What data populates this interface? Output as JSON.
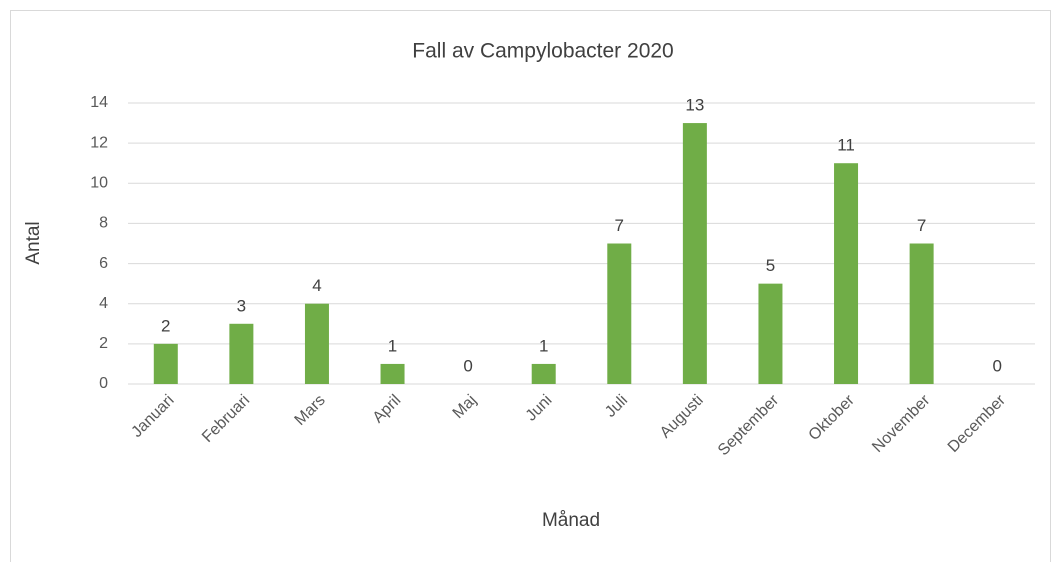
{
  "chart_data": {
    "type": "bar",
    "title": "Fall av Campylobacter 2020",
    "x_label": "Månad",
    "y_label": "Antal",
    "categories": [
      "Januari",
      "Februari",
      "Mars",
      "April",
      "Maj",
      "Juni",
      "Juli",
      "Augusti",
      "September",
      "Oktober",
      "November",
      "December"
    ],
    "values": [
      2,
      3,
      4,
      1,
      0,
      1,
      7,
      13,
      5,
      11,
      7,
      0
    ],
    "color": "#70ad47",
    "ylim": [
      0,
      14
    ],
    "yticks": [
      0,
      2,
      4,
      6,
      8,
      10,
      12,
      14
    ],
    "grid": true
  }
}
